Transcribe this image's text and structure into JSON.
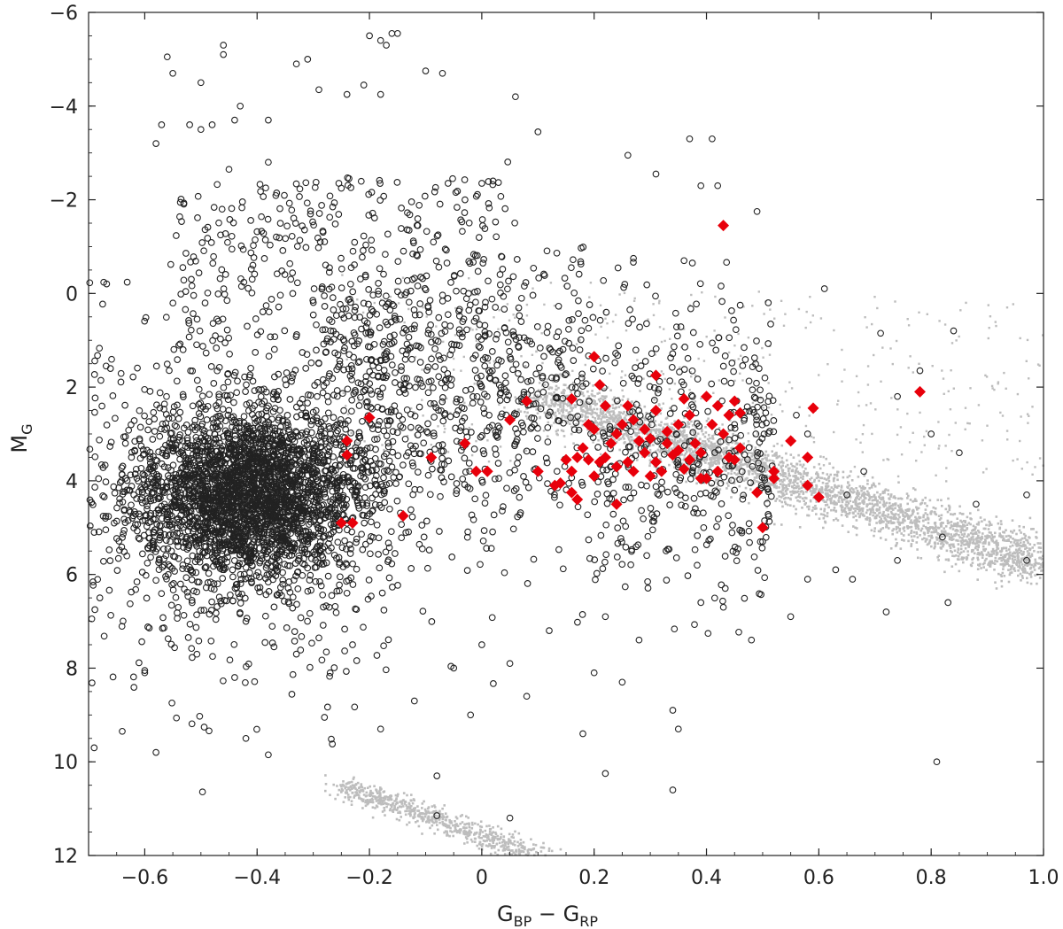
{
  "chart_data": {
    "type": "scatter",
    "title": "",
    "xlabel": {
      "main": "G",
      "sub1": "BP",
      "minus": " − ",
      "main2": "G",
      "sub2": "RP"
    },
    "ylabel": {
      "main": "M",
      "sub": "G"
    },
    "xlim": [
      -0.7,
      1.0
    ],
    "ylim": [
      12,
      -6
    ],
    "y_inverted": true,
    "grid": false,
    "legend": "none",
    "x_ticks": [
      -0.6,
      -0.4,
      -0.2,
      0,
      0.2,
      0.4,
      0.6,
      0.8,
      1.0
    ],
    "x_tick_labels": [
      "−0.6",
      "−0.4",
      "−0.2",
      "0",
      "0.2",
      "0.4",
      "0.6",
      "0.8",
      "1.0"
    ],
    "y_ticks": [
      -6,
      -4,
      -2,
      0,
      2,
      4,
      6,
      8,
      10,
      12
    ],
    "y_tick_labels": [
      "−6",
      "−4",
      "−2",
      "0",
      "2",
      "4",
      "6",
      "8",
      "10",
      "12"
    ],
    "colors": {
      "background_stars": "#bdbdbd",
      "open_circles": "#222222",
      "red_diamonds": "#e8000b"
    },
    "series": [
      {
        "marker": "gray-dot",
        "description_regions": [
          {
            "kind": "band",
            "from": [
              0.1,
              2.2
            ],
            "to": [
              1.0,
              5.8
            ],
            "halfwidth": 0.6
          },
          {
            "kind": "band",
            "from": [
              -0.25,
              10.5
            ],
            "to": [
              0.1,
              12.0
            ],
            "halfwidth": 0.25
          }
        ]
      },
      {
        "marker": "open-circle",
        "points": [
          [
            -0.56,
            -5.05
          ],
          [
            -0.55,
            -4.7
          ],
          [
            -0.5,
            -4.5
          ],
          [
            -0.46,
            -5.3
          ],
          [
            -0.46,
            -5.1
          ],
          [
            -0.33,
            -4.9
          ],
          [
            -0.31,
            -5.0
          ],
          [
            -0.2,
            -5.5
          ],
          [
            -0.18,
            -5.4
          ],
          [
            -0.17,
            -5.3
          ],
          [
            -0.16,
            -5.55
          ],
          [
            -0.15,
            -5.55
          ],
          [
            -0.52,
            -3.6
          ],
          [
            -0.5,
            -3.5
          ],
          [
            -0.48,
            -3.6
          ],
          [
            -0.44,
            -3.7
          ],
          [
            -0.43,
            -4.0
          ],
          [
            -0.38,
            -3.7
          ],
          [
            -0.29,
            -4.35
          ],
          [
            -0.24,
            -4.25
          ],
          [
            -0.21,
            -4.45
          ],
          [
            -0.18,
            -4.25
          ],
          [
            -0.1,
            -4.75
          ],
          [
            -0.07,
            -4.7
          ],
          [
            0.06,
            -4.2
          ],
          [
            0.1,
            -3.45
          ],
          [
            0.26,
            -2.95
          ],
          [
            0.37,
            -3.3
          ],
          [
            0.41,
            -3.3
          ],
          [
            0.31,
            -2.55
          ],
          [
            0.39,
            -2.3
          ],
          [
            0.42,
            -2.3
          ],
          [
            0.49,
            -1.75
          ],
          [
            -0.45,
            -2.65
          ],
          [
            -0.38,
            -2.8
          ],
          [
            -0.58,
            -3.2
          ],
          [
            -0.57,
            -3.6
          ],
          [
            0.0,
            -2.35
          ],
          [
            0.02,
            -2.4
          ],
          [
            -0.06,
            -2.35
          ],
          [
            -0.03,
            -2.0
          ],
          [
            0.27,
            -0.75
          ],
          [
            0.36,
            -0.7
          ],
          [
            0.46,
            0.25
          ],
          [
            0.51,
            0.2
          ],
          [
            0.61,
            -0.1
          ],
          [
            0.71,
            0.85
          ],
          [
            0.78,
            1.65
          ],
          [
            0.84,
            0.8
          ],
          [
            0.78,
            2.1
          ],
          [
            0.74,
            2.2
          ],
          [
            0.8,
            3.0
          ],
          [
            0.85,
            3.4
          ],
          [
            0.97,
            4.3
          ],
          [
            0.88,
            4.5
          ],
          [
            0.82,
            5.2
          ],
          [
            0.74,
            5.7
          ],
          [
            0.97,
            5.7
          ],
          [
            0.72,
            6.8
          ],
          [
            0.83,
            6.6
          ],
          [
            0.81,
            10.0
          ],
          [
            0.55,
            6.9
          ],
          [
            0.63,
            5.9
          ],
          [
            0.66,
            6.1
          ],
          [
            0.48,
            7.4
          ],
          [
            0.58,
            6.1
          ],
          [
            0.39,
            6.6
          ],
          [
            0.43,
            6.7
          ],
          [
            0.34,
            8.9
          ],
          [
            0.35,
            9.3
          ],
          [
            0.34,
            10.6
          ],
          [
            0.22,
            10.25
          ],
          [
            0.18,
            9.4
          ],
          [
            0.05,
            11.2
          ],
          [
            -0.02,
            9.0
          ],
          [
            -0.08,
            10.3
          ],
          [
            -0.08,
            11.15
          ],
          [
            -0.18,
            9.3
          ],
          [
            -0.28,
            9.05
          ],
          [
            -0.38,
            9.85
          ],
          [
            -0.42,
            9.5
          ],
          [
            -0.58,
            9.8
          ],
          [
            -0.69,
            9.7
          ],
          [
            -0.64,
            9.35
          ],
          [
            -0.6,
            8.05
          ],
          [
            -0.6,
            8.1
          ],
          [
            -0.68,
            6.5
          ],
          [
            -0.69,
            5.1
          ],
          [
            -0.67,
            4.8
          ],
          [
            -0.44,
            8.2
          ],
          [
            -0.42,
            7.0
          ],
          [
            -0.33,
            7.7
          ],
          [
            -0.27,
            8.1
          ],
          [
            -0.23,
            7.5
          ],
          [
            -0.12,
            8.7
          ],
          [
            -0.05,
            8.0
          ],
          [
            0.0,
            7.5
          ],
          [
            0.05,
            7.9
          ],
          [
            0.08,
            8.6
          ],
          [
            0.12,
            7.2
          ],
          [
            0.2,
            8.1
          ],
          [
            0.22,
            6.9
          ],
          [
            0.28,
            7.4
          ],
          [
            0.25,
            8.3
          ],
          [
            0.45,
            4.2
          ],
          [
            0.5,
            5.3
          ],
          [
            0.58,
            3.0
          ],
          [
            0.56,
            2.6
          ],
          [
            0.65,
            4.3
          ],
          [
            0.68,
            3.8
          ]
        ],
        "dense_cloud": {
          "center": [
            -0.42,
            4.3
          ],
          "spread": [
            0.17,
            1.6
          ],
          "note": "thousands of overlapping open circles"
        }
      },
      {
        "marker": "red-diamond",
        "points": [
          [
            0.43,
            -1.45
          ],
          [
            0.2,
            1.35
          ],
          [
            0.21,
            1.95
          ],
          [
            0.31,
            1.75
          ],
          [
            0.36,
            2.25
          ],
          [
            0.4,
            2.2
          ],
          [
            0.42,
            2.4
          ],
          [
            0.45,
            2.3
          ],
          [
            0.78,
            2.1
          ],
          [
            0.59,
            2.45
          ],
          [
            0.55,
            3.15
          ],
          [
            0.58,
            3.5
          ],
          [
            0.52,
            3.8
          ],
          [
            0.52,
            3.95
          ],
          [
            0.58,
            4.1
          ],
          [
            0.6,
            4.35
          ],
          [
            0.49,
            4.25
          ],
          [
            0.5,
            5.0
          ],
          [
            0.45,
            3.55
          ],
          [
            0.44,
            3.5
          ],
          [
            0.42,
            3.8
          ],
          [
            0.4,
            3.95
          ],
          [
            0.39,
            3.95
          ],
          [
            0.36,
            3.75
          ],
          [
            0.34,
            3.45
          ],
          [
            0.33,
            3.2
          ],
          [
            0.3,
            3.1
          ],
          [
            0.29,
            2.9
          ],
          [
            0.27,
            2.7
          ],
          [
            0.26,
            2.4
          ],
          [
            0.25,
            2.8
          ],
          [
            0.24,
            3.0
          ],
          [
            0.23,
            3.2
          ],
          [
            0.22,
            3.5
          ],
          [
            0.21,
            3.6
          ],
          [
            0.2,
            3.9
          ],
          [
            0.19,
            3.55
          ],
          [
            0.18,
            3.3
          ],
          [
            0.17,
            3.5
          ],
          [
            0.16,
            3.8
          ],
          [
            0.15,
            3.55
          ],
          [
            0.14,
            4.05
          ],
          [
            0.13,
            4.1
          ],
          [
            0.16,
            4.25
          ],
          [
            0.17,
            4.4
          ],
          [
            0.24,
            4.5
          ],
          [
            0.1,
            3.8
          ],
          [
            0.08,
            2.3
          ],
          [
            0.05,
            2.7
          ],
          [
            0.01,
            3.8
          ],
          [
            -0.01,
            3.8
          ],
          [
            -0.03,
            3.2
          ],
          [
            -0.09,
            3.5
          ],
          [
            -0.2,
            2.65
          ],
          [
            -0.24,
            3.15
          ],
          [
            -0.24,
            3.45
          ],
          [
            -0.14,
            4.75
          ],
          [
            -0.25,
            4.9
          ],
          [
            -0.23,
            4.9
          ],
          [
            0.31,
            2.5
          ],
          [
            0.33,
            2.95
          ],
          [
            0.35,
            2.8
          ],
          [
            0.37,
            2.6
          ],
          [
            0.38,
            3.2
          ],
          [
            0.39,
            3.4
          ],
          [
            0.41,
            2.8
          ],
          [
            0.43,
            3.0
          ],
          [
            0.44,
            2.6
          ],
          [
            0.46,
            2.55
          ],
          [
            0.46,
            3.3
          ],
          [
            0.31,
            3.6
          ],
          [
            0.29,
            3.4
          ],
          [
            0.27,
            3.8
          ],
          [
            0.26,
            3.6
          ],
          [
            0.28,
            3.15
          ],
          [
            0.3,
            3.9
          ],
          [
            0.32,
            3.8
          ],
          [
            0.35,
            3.35
          ],
          [
            0.37,
            3.55
          ],
          [
            0.2,
            2.9
          ],
          [
            0.19,
            2.8
          ],
          [
            0.22,
            2.4
          ],
          [
            0.24,
            3.7
          ],
          [
            0.16,
            2.25
          ]
        ]
      }
    ]
  }
}
